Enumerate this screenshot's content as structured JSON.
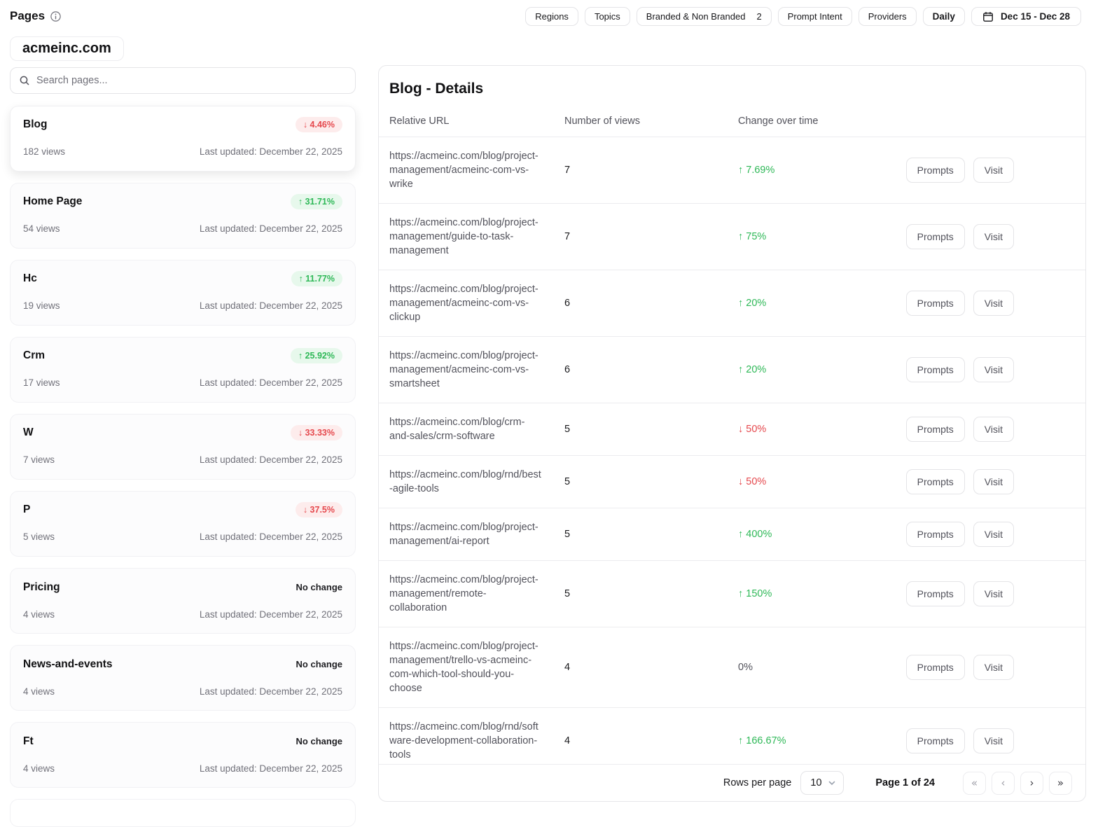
{
  "header": {
    "title": "Pages",
    "filters": [
      {
        "label": "Regions"
      },
      {
        "label": "Topics"
      },
      {
        "label": "Branded & Non Branded",
        "count": "2"
      },
      {
        "label": "Prompt Intent"
      },
      {
        "label": "Providers"
      }
    ],
    "daily_label": "Daily",
    "date_range": "Dec 15 - Dec 28"
  },
  "sidebar": {
    "domain": "acmeinc.com",
    "search_placeholder": "Search pages...",
    "pages": [
      {
        "title": "Blog",
        "change_dir": "down",
        "change": "4.46%",
        "views": "182 views",
        "updated": "Last updated: December 22, 2025",
        "selected": true
      },
      {
        "title": "Home Page",
        "change_dir": "up",
        "change": "31.71%",
        "views": "54 views",
        "updated": "Last updated: December 22, 2025",
        "selected": false
      },
      {
        "title": "Hc",
        "change_dir": "up",
        "change": "11.77%",
        "views": "19 views",
        "updated": "Last updated: December 22, 2025",
        "selected": false
      },
      {
        "title": "Crm",
        "change_dir": "up",
        "change": "25.92%",
        "views": "17 views",
        "updated": "Last updated: December 22, 2025",
        "selected": false
      },
      {
        "title": "W",
        "change_dir": "down",
        "change": "33.33%",
        "views": "7 views",
        "updated": "Last updated: December 22, 2025",
        "selected": false
      },
      {
        "title": "P",
        "change_dir": "down",
        "change": "37.5%",
        "views": "5 views",
        "updated": "Last updated: December 22, 2025",
        "selected": false
      },
      {
        "title": "Pricing",
        "change_dir": "none",
        "change": "No change",
        "views": "4 views",
        "updated": "Last updated: December 22, 2025",
        "selected": false
      },
      {
        "title": "News-and-events",
        "change_dir": "none",
        "change": "No change",
        "views": "4 views",
        "updated": "Last updated: December 22, 2025",
        "selected": false
      },
      {
        "title": "Ft",
        "change_dir": "none",
        "change": "No change",
        "views": "4 views",
        "updated": "Last updated: December 22, 2025",
        "selected": false
      }
    ]
  },
  "main": {
    "title": "Blog - Details",
    "columns": [
      "Relative URL",
      "Number of views",
      "Change over time"
    ],
    "rows": [
      {
        "url": "https://acmeinc.com/blog/project-management/acmeinc-com-vs-wrike",
        "views": "7",
        "change_dir": "up",
        "change": "7.69%"
      },
      {
        "url": "https://acmeinc.com/blog/project-management/guide-to-task-management",
        "views": "7",
        "change_dir": "up",
        "change": "75%"
      },
      {
        "url": "https://acmeinc.com/blog/project-management/acmeinc-com-vs-clickup",
        "views": "6",
        "change_dir": "up",
        "change": "20%"
      },
      {
        "url": "https://acmeinc.com/blog/project-management/acmeinc-com-vs-smartsheet",
        "views": "6",
        "change_dir": "up",
        "change": "20%"
      },
      {
        "url": "https://acmeinc.com/blog/crm-and-sales/crm-software",
        "views": "5",
        "change_dir": "down",
        "change": "50%"
      },
      {
        "url": "https://acmeinc.com/blog/rnd/best-agile-tools",
        "views": "5",
        "change_dir": "down",
        "change": "50%"
      },
      {
        "url": "https://acmeinc.com/blog/project-management/ai-report",
        "views": "5",
        "change_dir": "up",
        "change": "400%"
      },
      {
        "url": "https://acmeinc.com/blog/project-management/remote-collaboration",
        "views": "5",
        "change_dir": "up",
        "change": "150%"
      },
      {
        "url": "https://acmeinc.com/blog/project-management/trello-vs-acmeinc-com-which-tool-should-you-choose",
        "views": "4",
        "change_dir": "none",
        "change": "0%"
      },
      {
        "url": "https://acmeinc.com/blog/rnd/software-development-collaboration-tools",
        "views": "4",
        "change_dir": "up",
        "change": "166.67%"
      }
    ],
    "row_actions": {
      "prompts": "Prompts",
      "visit": "Visit"
    },
    "footer": {
      "rows_per_page_label": "Rows per page",
      "rows_per_page_value": "10",
      "page_label": "Page 1 of 24"
    }
  },
  "icons": {
    "up": "↑",
    "down": "↓",
    "first": "«",
    "prev": "‹",
    "next": "›",
    "last": "»"
  },
  "colors": {
    "positive": "#2eb857",
    "negative": "#e5484d",
    "positive_bg": "#e7f8ec",
    "negative_bg": "#fdecec"
  }
}
